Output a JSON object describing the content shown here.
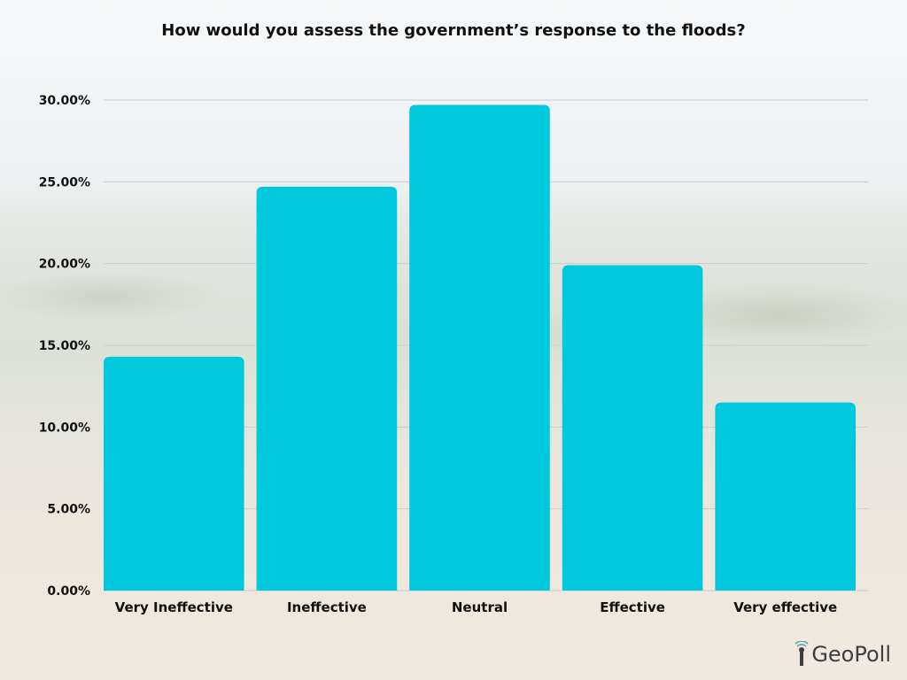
{
  "chart_data": {
    "type": "bar",
    "title": "How would you assess the government’s response to the floods?",
    "categories": [
      "Very Ineffective",
      "Ineffective",
      "Neutral",
      "Effective",
      "Very effective"
    ],
    "values": [
      14.3,
      24.7,
      29.7,
      19.9,
      11.5
    ],
    "ylim": [
      0,
      30
    ],
    "yticks": [
      0,
      5,
      10,
      15,
      20,
      25,
      30
    ],
    "ytick_labels": [
      "0.00%",
      "5.00%",
      "10.00%",
      "15.00%",
      "20.00%",
      "25.00%",
      "30.00%"
    ],
    "xlabel": "",
    "ylabel": "",
    "grid": true,
    "bar_color": "#00c9dd"
  },
  "branding": {
    "logo_text": "GeoPoll",
    "logo_icon": "signal-icon"
  }
}
